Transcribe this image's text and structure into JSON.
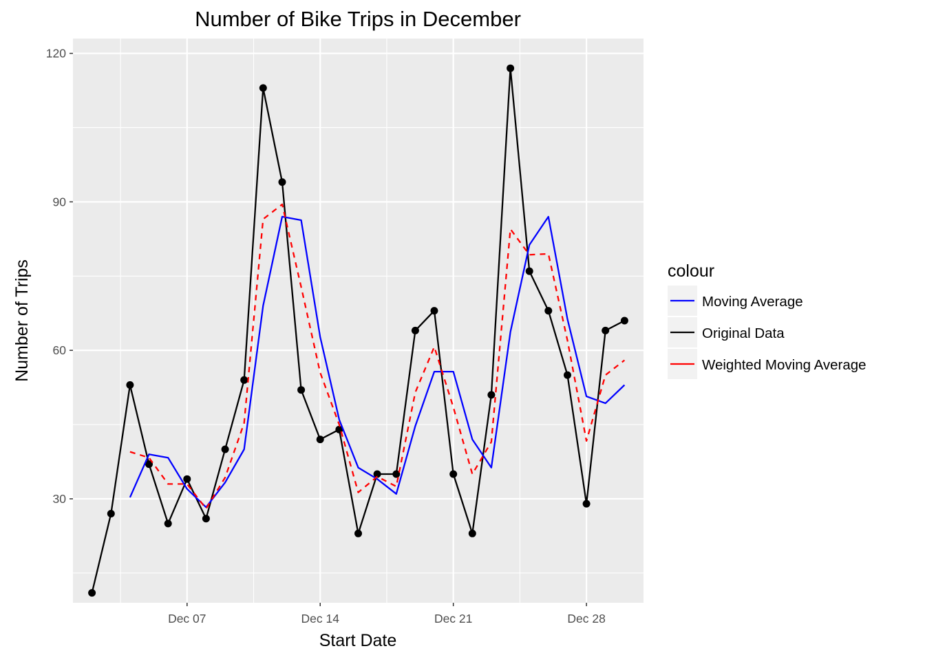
{
  "chart_data": {
    "type": "line",
    "title": "Number of Bike Trips in December",
    "xlabel": "Start Date",
    "ylabel": "Number of Trips",
    "x_tick_labels": [
      "Dec 07",
      "Dec 14",
      "Dec 21",
      "Dec 28"
    ],
    "x_tick_values": [
      "2014-12-07",
      "2014-12-14",
      "2014-12-21",
      "2014-12-28"
    ],
    "y_ticks": [
      30,
      60,
      90,
      120
    ],
    "xlim": [
      "2014-12-01",
      "2014-12-31"
    ],
    "ylim": [
      9,
      123
    ],
    "grid": true,
    "legend": {
      "title": "colour",
      "position": "right",
      "entries": [
        "Moving Average",
        "Original Data",
        "Weighted Moving Average"
      ]
    },
    "series": [
      {
        "name": "Original Data",
        "color": "#000000",
        "style": "solid-with-points",
        "x": [
          "2014-12-02",
          "2014-12-03",
          "2014-12-04",
          "2014-12-05",
          "2014-12-06",
          "2014-12-07",
          "2014-12-08",
          "2014-12-09",
          "2014-12-10",
          "2014-12-11",
          "2014-12-12",
          "2014-12-13",
          "2014-12-14",
          "2014-12-15",
          "2014-12-16",
          "2014-12-17",
          "2014-12-18",
          "2014-12-19",
          "2014-12-20",
          "2014-12-21",
          "2014-12-22",
          "2014-12-23",
          "2014-12-24",
          "2014-12-25",
          "2014-12-26",
          "2014-12-27",
          "2014-12-28",
          "2014-12-29",
          "2014-12-30",
          "2014-12-31"
        ],
        "values": [
          11,
          27,
          53,
          37,
          25,
          34,
          26,
          40,
          54,
          113,
          94,
          52,
          42,
          44,
          23,
          35,
          35,
          64,
          68,
          35,
          23,
          51,
          117,
          76,
          68,
          55,
          29,
          64,
          66,
          null
        ]
      },
      {
        "name": "Moving Average",
        "color": "#0000ff",
        "style": "solid",
        "x": [
          "2014-12-04",
          "2014-12-05",
          "2014-12-06",
          "2014-12-07",
          "2014-12-08",
          "2014-12-09",
          "2014-12-10",
          "2014-12-11",
          "2014-12-12",
          "2014-12-13",
          "2014-12-14",
          "2014-12-15",
          "2014-12-16",
          "2014-12-17",
          "2014-12-18",
          "2014-12-19",
          "2014-12-20",
          "2014-12-21",
          "2014-12-22",
          "2014-12-23",
          "2014-12-24",
          "2014-12-25",
          "2014-12-26",
          "2014-12-27",
          "2014-12-28",
          "2014-12-29",
          "2014-12-30",
          "2014-12-31"
        ],
        "values": [
          30.3,
          39.0,
          38.3,
          32.0,
          28.3,
          33.3,
          40.0,
          69.0,
          87.0,
          86.3,
          62.7,
          46.0,
          36.3,
          34.0,
          31.0,
          44.7,
          55.7,
          55.7,
          42.0,
          36.3,
          63.7,
          81.3,
          87.0,
          66.3,
          50.7,
          49.3,
          53.0,
          null
        ]
      },
      {
        "name": "Weighted Moving Average",
        "color": "#ff0000",
        "style": "dashed",
        "x": [
          "2014-12-04",
          "2014-12-05",
          "2014-12-06",
          "2014-12-07",
          "2014-12-08",
          "2014-12-09",
          "2014-12-10",
          "2014-12-11",
          "2014-12-12",
          "2014-12-13",
          "2014-12-14",
          "2014-12-15",
          "2014-12-16",
          "2014-12-17",
          "2014-12-18",
          "2014-12-19",
          "2014-12-20",
          "2014-12-21",
          "2014-12-22",
          "2014-12-23",
          "2014-12-24",
          "2014-12-25",
          "2014-12-26",
          "2014-12-27",
          "2014-12-28",
          "2014-12-29",
          "2014-12-30",
          "2014-12-31"
        ],
        "values": [
          39.5,
          38.3,
          33.0,
          33.0,
          28.0,
          34.3,
          45.3,
          86.5,
          89.5,
          72.8,
          55.5,
          45.0,
          31.3,
          34.5,
          32.5,
          51.5,
          60.7,
          48.5,
          35.0,
          41.5,
          84.5,
          79.3,
          79.5,
          62.0,
          41.7,
          55.0,
          58.0,
          null
        ]
      }
    ]
  }
}
